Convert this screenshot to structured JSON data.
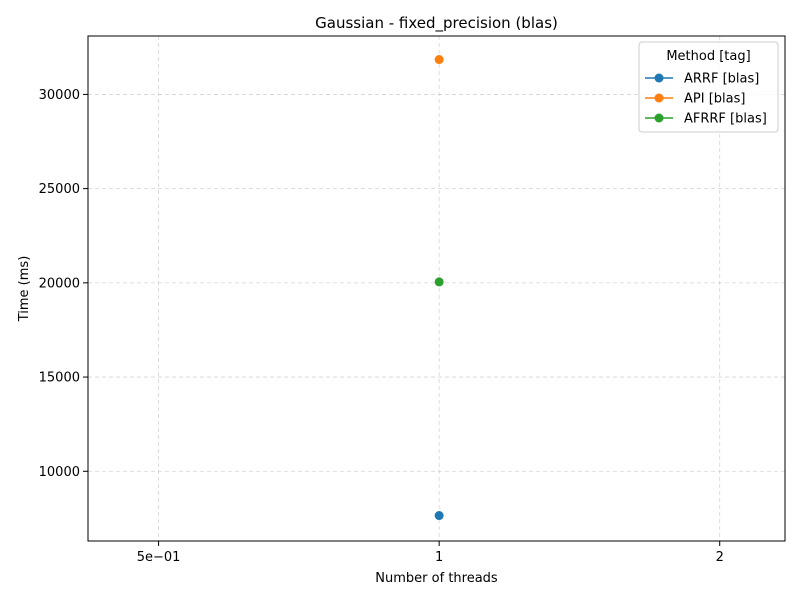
{
  "chart_data": {
    "type": "line",
    "title": "Gaussian - fixed_precision (blas)",
    "xlabel": "Number of threads",
    "ylabel": "Time (ms)",
    "x_scale": "log",
    "xlim": [
      0.42,
      2.35
    ],
    "ylim": [
      6300,
      33100
    ],
    "x_ticks": [
      {
        "value": 0.5,
        "label": "5e−01"
      },
      {
        "value": 1,
        "label": "1"
      },
      {
        "value": 2,
        "label": "2"
      }
    ],
    "y_ticks": [
      10000,
      15000,
      20000,
      25000,
      30000
    ],
    "y_tick_labels": [
      "10000",
      "15000",
      "20000",
      "25000",
      "30000"
    ],
    "grid": true,
    "legend": {
      "title": "Method [tag]",
      "placement": "top-right"
    },
    "series": [
      {
        "name": "ARRF [blas]",
        "color": "#1f77b4",
        "x": [
          1
        ],
        "y": [
          7650
        ]
      },
      {
        "name": "API [blas]",
        "color": "#ff7f0e",
        "x": [
          1
        ],
        "y": [
          31850
        ]
      },
      {
        "name": "AFRRF [blas]",
        "color": "#2ca02c",
        "x": [
          1
        ],
        "y": [
          20050
        ]
      }
    ]
  }
}
